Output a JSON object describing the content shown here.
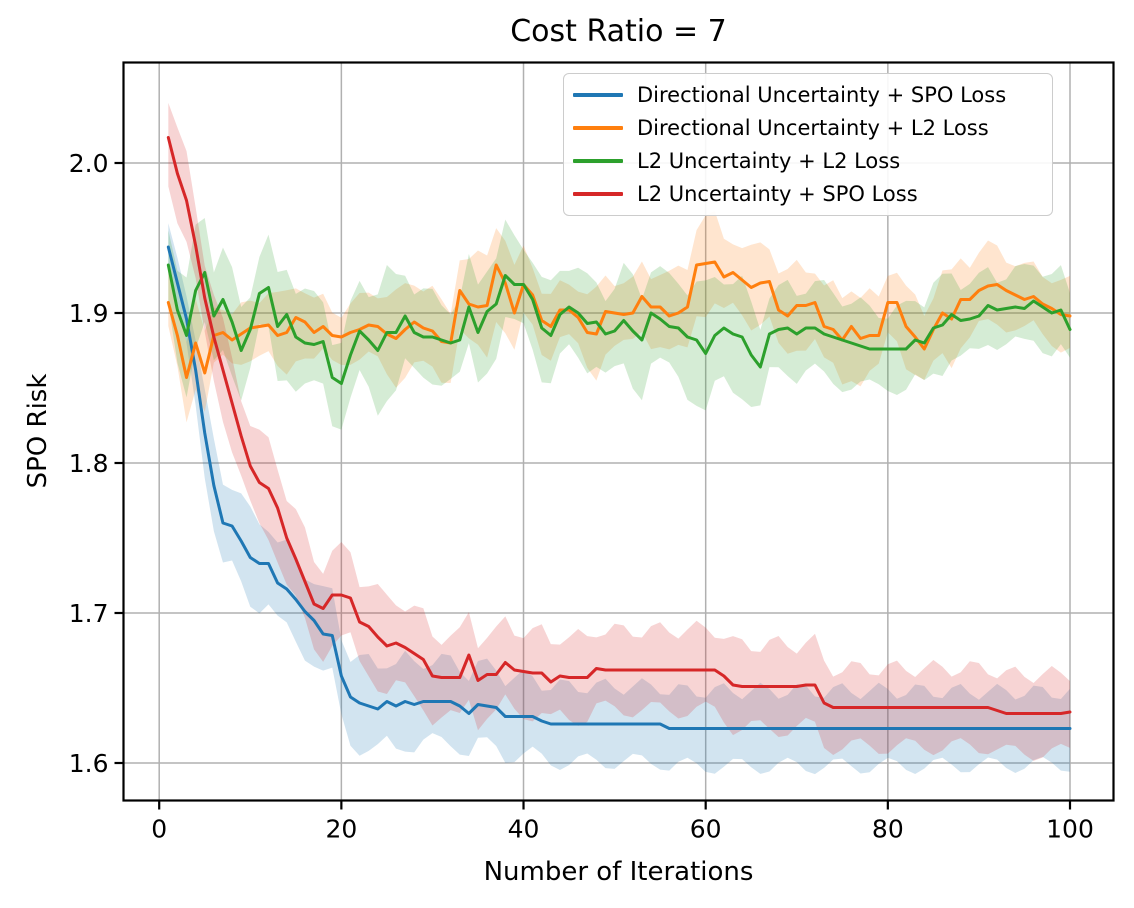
{
  "figure": {
    "background": "#ffffff",
    "grid_color": "#b0b0b0",
    "spine_color": "#000000",
    "text_color": "#000000",
    "legend_border_color": "#cccccc"
  },
  "chart_data": {
    "type": "line",
    "title": "Cost Ratio = 7",
    "xlabel": "Number of Iterations",
    "ylabel": "SPO Risk",
    "xlim": [
      -4.1,
      104.7
    ],
    "ylim": [
      1.575,
      2.067
    ],
    "xticks": [
      0,
      20,
      40,
      60,
      80,
      100
    ],
    "yticks": [
      1.6,
      1.7,
      1.8,
      1.9,
      2.0
    ],
    "ytick_labels": [
      "1.6",
      "1.7",
      "1.8",
      "1.9",
      "2.0"
    ],
    "grid": true,
    "legend_position": "upper right",
    "band_alpha": 0.2,
    "x_range": [
      1,
      100,
      1
    ],
    "series": [
      {
        "name": "Directional Uncertainty + SPO Loss",
        "color": "#1f77b4",
        "values": [
          1.944,
          1.92,
          1.896,
          1.862,
          1.82,
          1.785,
          1.76,
          1.758,
          1.748,
          1.737,
          1.733,
          1.733,
          1.72,
          1.716,
          1.709,
          1.701,
          1.695,
          1.686,
          1.685,
          1.658,
          1.644,
          1.64,
          1.638,
          1.636,
          1.641,
          1.638,
          1.641,
          1.639,
          1.641,
          1.641,
          1.641,
          1.641,
          1.638,
          1.633,
          1.639,
          1.638,
          1.637,
          1.631,
          1.631,
          1.631,
          1.631,
          1.628,
          1.626,
          1.626,
          1.626,
          1.626,
          1.626,
          1.626,
          1.626,
          1.626,
          1.626,
          1.626,
          1.626,
          1.626,
          1.626,
          1.623,
          1.623,
          1.623,
          1.623,
          1.623,
          1.623,
          1.623,
          1.623,
          1.623,
          1.623,
          1.623,
          1.623,
          1.623,
          1.623,
          1.623,
          1.623,
          1.623,
          1.623,
          1.623,
          1.623,
          1.623,
          1.623,
          1.623,
          1.623,
          1.623,
          1.623,
          1.623,
          1.623,
          1.623,
          1.623,
          1.623,
          1.623,
          1.623,
          1.623,
          1.623,
          1.623,
          1.623,
          1.623,
          1.623,
          1.623,
          1.623,
          1.623,
          1.623,
          1.623,
          1.623
        ],
        "band_x": [
          1,
          4,
          7,
          12,
          18,
          22,
          30,
          45,
          60,
          80,
          100
        ],
        "band_halfwidth": [
          0.013,
          0.022,
          0.03,
          0.027,
          0.027,
          0.029,
          0.027,
          0.025,
          0.025,
          0.025,
          0.024
        ]
      },
      {
        "name": "Directional Uncertainty + L2 Loss",
        "color": "#ff7f0e",
        "values": [
          1.907,
          1.885,
          1.857,
          1.88,
          1.86,
          1.885,
          1.887,
          1.882,
          1.886,
          1.89,
          1.891,
          1.892,
          1.885,
          1.887,
          1.897,
          1.894,
          1.887,
          1.891,
          1.885,
          1.884,
          1.887,
          1.889,
          1.892,
          1.891,
          1.886,
          1.883,
          1.889,
          1.894,
          1.89,
          1.888,
          1.881,
          1.88,
          1.915,
          1.906,
          1.904,
          1.905,
          1.932,
          1.92,
          1.9,
          1.919,
          1.912,
          1.895,
          1.891,
          1.902,
          1.902,
          1.897,
          1.887,
          1.886,
          1.901,
          1.9,
          1.899,
          1.9,
          1.911,
          1.904,
          1.904,
          1.898,
          1.9,
          1.904,
          1.932,
          1.933,
          1.934,
          1.924,
          1.927,
          1.922,
          1.917,
          1.92,
          1.921,
          1.902,
          1.898,
          1.905,
          1.905,
          1.907,
          1.891,
          1.889,
          1.882,
          1.891,
          1.883,
          1.885,
          1.885,
          1.907,
          1.907,
          1.891,
          1.884,
          1.876,
          1.889,
          1.9,
          1.896,
          1.909,
          1.909,
          1.915,
          1.918,
          1.919,
          1.915,
          1.912,
          1.909,
          1.911,
          1.906,
          1.903,
          1.899,
          1.898
        ],
        "band_x": [
          1,
          3,
          5,
          8,
          11,
          14,
          17,
          20,
          24,
          28,
          32,
          36,
          40,
          44,
          48,
          52,
          56,
          60,
          64,
          68,
          72,
          76,
          80,
          84,
          88,
          92,
          96,
          100
        ],
        "band_halfwidth": [
          0.02,
          0.027,
          0.024,
          0.016,
          0.02,
          0.026,
          0.02,
          0.016,
          0.024,
          0.03,
          0.022,
          0.034,
          0.024,
          0.017,
          0.026,
          0.02,
          0.026,
          0.03,
          0.022,
          0.028,
          0.024,
          0.03,
          0.022,
          0.025,
          0.028,
          0.024,
          0.02,
          0.022
        ]
      },
      {
        "name": "L2 Uncertainty + L2 Loss",
        "color": "#2ca02c",
        "values": [
          1.932,
          1.902,
          1.885,
          1.915,
          1.927,
          1.898,
          1.909,
          1.894,
          1.875,
          1.889,
          1.913,
          1.917,
          1.891,
          1.899,
          1.884,
          1.88,
          1.879,
          1.881,
          1.857,
          1.853,
          1.872,
          1.888,
          1.882,
          1.875,
          1.887,
          1.887,
          1.898,
          1.887,
          1.884,
          1.884,
          1.882,
          1.88,
          1.882,
          1.904,
          1.887,
          1.901,
          1.906,
          1.925,
          1.919,
          1.919,
          1.909,
          1.89,
          1.885,
          1.899,
          1.904,
          1.9,
          1.893,
          1.894,
          1.886,
          1.888,
          1.895,
          1.888,
          1.882,
          1.9,
          1.896,
          1.891,
          1.89,
          1.884,
          1.882,
          1.873,
          1.885,
          1.89,
          1.886,
          1.884,
          1.872,
          1.864,
          1.886,
          1.889,
          1.89,
          1.886,
          1.89,
          1.89,
          1.886,
          1.884,
          1.882,
          1.88,
          1.878,
          1.876,
          1.876,
          1.876,
          1.876,
          1.876,
          1.882,
          1.88,
          1.89,
          1.892,
          1.899,
          1.895,
          1.896,
          1.898,
          1.905,
          1.902,
          1.903,
          1.904,
          1.903,
          1.908,
          1.904,
          1.9,
          1.902,
          1.889
        ],
        "band_x": [
          1,
          3,
          5,
          8,
          11,
          14,
          17,
          20,
          24,
          28,
          32,
          36,
          40,
          44,
          48,
          52,
          56,
          60,
          64,
          68,
          72,
          76,
          80,
          84,
          88,
          92,
          96,
          100
        ],
        "band_halfwidth": [
          0.028,
          0.034,
          0.04,
          0.03,
          0.026,
          0.036,
          0.03,
          0.026,
          0.04,
          0.03,
          0.024,
          0.034,
          0.028,
          0.032,
          0.026,
          0.034,
          0.03,
          0.04,
          0.034,
          0.026,
          0.03,
          0.028,
          0.024,
          0.03,
          0.026,
          0.022,
          0.026,
          0.024
        ]
      },
      {
        "name": "L2 Uncertainty + SPO Loss",
        "color": "#d62728",
        "values": [
          2.017,
          1.993,
          1.975,
          1.945,
          1.91,
          1.884,
          1.862,
          1.84,
          1.818,
          1.798,
          1.787,
          1.783,
          1.77,
          1.75,
          1.736,
          1.721,
          1.706,
          1.703,
          1.712,
          1.712,
          1.71,
          1.694,
          1.691,
          1.684,
          1.678,
          1.68,
          1.677,
          1.673,
          1.669,
          1.658,
          1.657,
          1.657,
          1.657,
          1.672,
          1.655,
          1.659,
          1.659,
          1.667,
          1.662,
          1.661,
          1.66,
          1.66,
          1.654,
          1.658,
          1.657,
          1.657,
          1.657,
          1.663,
          1.662,
          1.662,
          1.662,
          1.662,
          1.662,
          1.662,
          1.662,
          1.662,
          1.662,
          1.662,
          1.662,
          1.662,
          1.662,
          1.658,
          1.652,
          1.651,
          1.651,
          1.651,
          1.651,
          1.651,
          1.651,
          1.651,
          1.652,
          1.652,
          1.64,
          1.637,
          1.637,
          1.637,
          1.637,
          1.637,
          1.637,
          1.637,
          1.637,
          1.637,
          1.637,
          1.637,
          1.637,
          1.637,
          1.637,
          1.637,
          1.637,
          1.637,
          1.637,
          1.635,
          1.633,
          1.633,
          1.633,
          1.633,
          1.633,
          1.633,
          1.633,
          1.634
        ],
        "band_x": [
          1,
          4,
          8,
          12,
          16,
          20,
          25,
          30,
          36,
          42,
          50,
          60,
          66,
          72,
          74,
          85,
          95,
          100
        ],
        "band_halfwidth": [
          0.028,
          0.027,
          0.029,
          0.03,
          0.03,
          0.029,
          0.03,
          0.028,
          0.027,
          0.027,
          0.026,
          0.027,
          0.028,
          0.028,
          0.026,
          0.026,
          0.026,
          0.026
        ]
      }
    ]
  }
}
